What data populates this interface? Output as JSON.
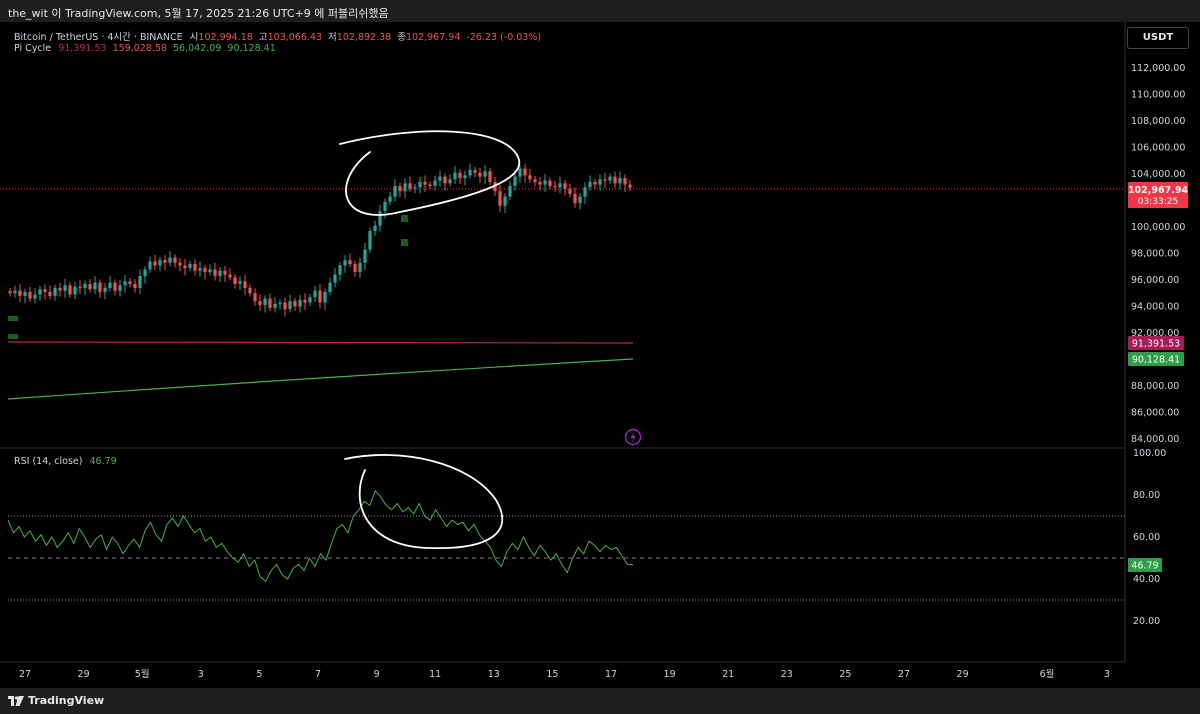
{
  "top_bar": {
    "title": "the_wit 이 TradingView.com, 5월 17, 2025 21:26 UTC+9 에 퍼블리쉬했음"
  },
  "legend": {
    "symbol": "Bitcoin / TetherUS · 4시간 · BINANCE",
    "ohlc": [
      {
        "label": "시",
        "value": "102,994.18"
      },
      {
        "label": "고",
        "value": "103,066.43"
      },
      {
        "label": "저",
        "value": "102,892.38"
      },
      {
        "label": "종",
        "value": "102,967.94"
      }
    ],
    "change": "-26.23 (-0.03%)",
    "indicator_name": "Pi Cycle",
    "indicator_values": [
      "91,391.53",
      "159,028.58",
      "56,042.09",
      "90,128.41"
    ]
  },
  "rsi_legend": {
    "name": "RSI (14, close)",
    "value": "46.79"
  },
  "currency_button": "USDT",
  "price_axis": {
    "ticks": [
      "112,000.00",
      "110,000.00",
      "108,000.00",
      "106,000.00",
      "104,000.00",
      "100,000.00",
      "98,000.00",
      "96,000.00",
      "94,000.00",
      "92,000.00",
      "88,000.00",
      "86,000.00",
      "84,000.00"
    ],
    "last_price_label": "102,967.94",
    "countdown": "03:33:25",
    "pi_upper_label": "91,391.53",
    "pi_lower_label": "90,128.41"
  },
  "rsi_axis": {
    "ticks": [
      "100.00",
      "80.00",
      "60.00",
      "40.00",
      "20.00"
    ],
    "value_label": "46.79"
  },
  "time_axis": {
    "ticks": [
      "27",
      "29",
      "5월",
      "3",
      "5",
      "7",
      "9",
      "11",
      "13",
      "15",
      "17",
      "19",
      "21",
      "23",
      "25",
      "27",
      "29",
      "6월",
      "3"
    ]
  },
  "footer": {
    "brand": "TradingView"
  },
  "colors": {
    "up": "#26a69a",
    "down": "#ef5350",
    "pi_upper": "#b7255a",
    "pi_lower": "#4caf50",
    "rsi_line": "#4caf50",
    "last_price_bg": "#f23645"
  },
  "chart_data": [
    {
      "type": "candlestick",
      "title": "Bitcoin / TetherUS · 4시간 · BINANCE",
      "x_ticks": [
        "27",
        "29",
        "5월",
        "3",
        "5",
        "7",
        "9",
        "11",
        "13",
        "15",
        "17"
      ],
      "ylim": [
        84000,
        112000
      ],
      "close_series": [
        95000,
        95200,
        94800,
        95100,
        94600,
        94900,
        95300,
        95100,
        94800,
        95400,
        95200,
        95600,
        94900,
        95500,
        95400,
        95700,
        95300,
        95800,
        95100,
        95400,
        95800,
        95200,
        95600,
        95900,
        95700,
        95400,
        96300,
        96800,
        97400,
        97100,
        97500,
        97300,
        97700,
        97300,
        97100,
        96900,
        97200,
        96700,
        96900,
        96600,
        96800,
        96300,
        96700,
        96400,
        96200,
        95700,
        95900,
        95400,
        95000,
        94400,
        94100,
        94600,
        93900,
        94200,
        94300,
        93800,
        94400,
        94000,
        94500,
        94300,
        94700,
        95200,
        94300,
        95100,
        95800,
        96400,
        97100,
        97500,
        97200,
        96600,
        97300,
        98300,
        99700,
        100100,
        101200,
        101900,
        102300,
        103100,
        102700,
        103300,
        102900,
        103000,
        103400,
        103200,
        103100,
        103500,
        103800,
        103300,
        103600,
        104100,
        103700,
        103900,
        104300,
        104100,
        103800,
        104200,
        103400,
        102700,
        101600,
        102300,
        103100,
        103800,
        104400,
        103900,
        103600,
        103400,
        103200,
        103500,
        103100,
        103000,
        103300,
        102900,
        102500,
        101800,
        102300,
        103000,
        103400,
        103200,
        103600,
        103500,
        103800,
        103300,
        103700,
        103200,
        102967.94
      ],
      "series": [
        {
          "name": "Pi Cycle",
          "values": [
            91391.53
          ]
        },
        {
          "name": "Pi Cycle",
          "values": [
            90128.41
          ]
        }
      ]
    },
    {
      "type": "line",
      "title": "RSI (14, close)",
      "ylim": [
        0,
        100
      ],
      "levels": [
        70,
        50,
        30
      ],
      "series": [
        {
          "name": "RSI (14, close)",
          "values": [
            68,
            62,
            65,
            60,
            63,
            58,
            61,
            56,
            60,
            55,
            58,
            62,
            57,
            64,
            60,
            55,
            59,
            61,
            54,
            60,
            57,
            52,
            56,
            59,
            55,
            63,
            67,
            61,
            58,
            66,
            69,
            65,
            70,
            66,
            62,
            64,
            58,
            60,
            55,
            57,
            53,
            50,
            48,
            52,
            46,
            49,
            41,
            39,
            44,
            47,
            42,
            40,
            45,
            47,
            44,
            50,
            46,
            52,
            49,
            57,
            64,
            66,
            62,
            70,
            73,
            77,
            75,
            82,
            79,
            75,
            73,
            76,
            72,
            74,
            71,
            76,
            70,
            68,
            73,
            69,
            65,
            68,
            66,
            67,
            63,
            66,
            61,
            58,
            55,
            49,
            46,
            53,
            57,
            54,
            60,
            55,
            51,
            56,
            53,
            49,
            52,
            47,
            43,
            50,
            55,
            52,
            58,
            56,
            53,
            56,
            54,
            55,
            51,
            47,
            46.79
          ]
        }
      ]
    }
  ]
}
